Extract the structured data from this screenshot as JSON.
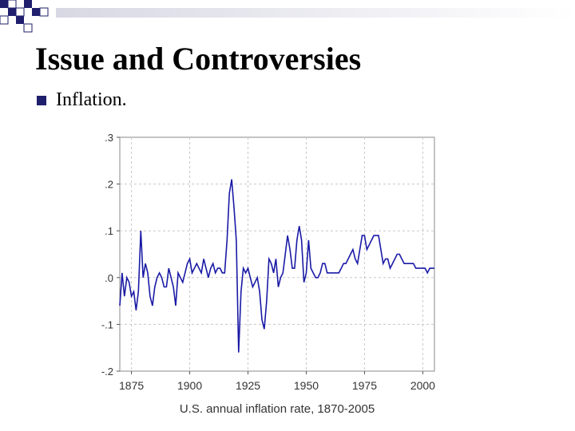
{
  "slide": {
    "title": "Issue and Controversies",
    "bullet": "Inflation.",
    "theme_color": "#1f1f6e",
    "header_fade_color": "#d8d8e4"
  },
  "chart_data": {
    "type": "line",
    "title": "",
    "xlabel": "U.S. annual inflation rate, 1870-2005",
    "ylabel": "",
    "xlim": [
      1870,
      2005
    ],
    "ylim": [
      -0.2,
      0.3
    ],
    "xticks": [
      1875,
      1900,
      1925,
      1950,
      1975,
      2000
    ],
    "xtick_labels": [
      "1875",
      "1900",
      "1925",
      "1950",
      "1975",
      "2000"
    ],
    "yticks": [
      -0.2,
      -0.1,
      0.0,
      0.1,
      0.2,
      0.3
    ],
    "ytick_labels": [
      "-.2",
      "-.1",
      ".0",
      ".1",
      ".2",
      ".3"
    ],
    "grid": true,
    "line_color": "#1a1aa6",
    "series": [
      {
        "x": [
          1870,
          1871,
          1872,
          1873,
          1874,
          1875,
          1876,
          1877,
          1878,
          1879,
          1880,
          1881,
          1882,
          1883,
          1884,
          1885,
          1886,
          1887,
          1888,
          1889,
          1890,
          1891,
          1892,
          1893,
          1894,
          1895,
          1896,
          1897,
          1898,
          1899,
          1900,
          1901,
          1902,
          1903,
          1904,
          1905,
          1906,
          1907,
          1908,
          1909,
          1910,
          1911,
          1912,
          1913,
          1914,
          1915,
          1916,
          1917,
          1918,
          1919,
          1920,
          1921,
          1922,
          1923,
          1924,
          1925,
          1926,
          1927,
          1928,
          1929,
          1930,
          1931,
          1932,
          1933,
          1934,
          1935,
          1936,
          1937,
          1938,
          1939,
          1940,
          1941,
          1942,
          1943,
          1944,
          1945,
          1946,
          1947,
          1948,
          1949,
          1950,
          1951,
          1952,
          1953,
          1954,
          1955,
          1956,
          1957,
          1958,
          1959,
          1960,
          1961,
          1962,
          1963,
          1964,
          1965,
          1966,
          1967,
          1968,
          1969,
          1970,
          1971,
          1972,
          1973,
          1974,
          1975,
          1976,
          1977,
          1978,
          1979,
          1980,
          1981,
          1982,
          1983,
          1984,
          1985,
          1986,
          1987,
          1988,
          1989,
          1990,
          1991,
          1992,
          1993,
          1994,
          1995,
          1996,
          1997,
          1998,
          1999,
          2000,
          2001,
          2002,
          2003,
          2004,
          2005
        ],
        "y": [
          -0.06,
          0.01,
          -0.04,
          0.0,
          -0.01,
          -0.04,
          -0.03,
          -0.07,
          -0.03,
          0.1,
          0.0,
          0.03,
          0.01,
          -0.04,
          -0.06,
          -0.02,
          0.0,
          0.01,
          0.0,
          -0.02,
          -0.02,
          0.02,
          0.0,
          -0.02,
          -0.06,
          0.01,
          0.0,
          -0.01,
          0.01,
          0.03,
          0.04,
          0.01,
          0.02,
          0.03,
          0.02,
          0.01,
          0.04,
          0.02,
          0.0,
          0.02,
          0.03,
          0.01,
          0.02,
          0.02,
          0.01,
          0.01,
          0.08,
          0.18,
          0.21,
          0.15,
          0.08,
          -0.16,
          -0.03,
          0.02,
          0.01,
          0.02,
          0.0,
          -0.02,
          -0.01,
          0.0,
          -0.03,
          -0.09,
          -0.11,
          -0.05,
          0.04,
          0.03,
          0.01,
          0.04,
          -0.02,
          0.0,
          0.01,
          0.05,
          0.09,
          0.06,
          0.02,
          0.02,
          0.08,
          0.11,
          0.08,
          -0.01,
          0.01,
          0.08,
          0.02,
          0.01,
          0.0,
          0.0,
          0.01,
          0.03,
          0.03,
          0.01,
          0.01,
          0.01,
          0.01,
          0.01,
          0.01,
          0.02,
          0.03,
          0.03,
          0.04,
          0.05,
          0.06,
          0.04,
          0.03,
          0.06,
          0.09,
          0.09,
          0.06,
          0.07,
          0.08,
          0.09,
          0.09,
          0.09,
          0.06,
          0.03,
          0.04,
          0.04,
          0.02,
          0.03,
          0.04,
          0.05,
          0.05,
          0.04,
          0.03,
          0.03,
          0.03,
          0.03,
          0.03,
          0.02,
          0.02,
          0.02,
          0.02,
          0.02,
          0.01,
          0.02,
          0.02,
          0.02
        ]
      }
    ]
  }
}
